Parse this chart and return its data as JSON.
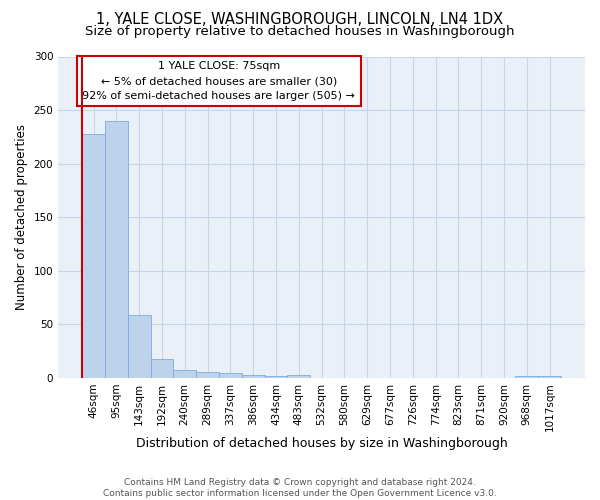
{
  "title1": "1, YALE CLOSE, WASHINGBOROUGH, LINCOLN, LN4 1DX",
  "title2": "Size of property relative to detached houses in Washingborough",
  "xlabel": "Distribution of detached houses by size in Washingborough",
  "ylabel": "Number of detached properties",
  "bar_labels": [
    "46sqm",
    "95sqm",
    "143sqm",
    "192sqm",
    "240sqm",
    "289sqm",
    "337sqm",
    "386sqm",
    "434sqm",
    "483sqm",
    "532sqm",
    "580sqm",
    "629sqm",
    "677sqm",
    "726sqm",
    "774sqm",
    "823sqm",
    "871sqm",
    "920sqm",
    "968sqm",
    "1017sqm"
  ],
  "bar_values": [
    228,
    240,
    59,
    18,
    7,
    6,
    5,
    3,
    2,
    3,
    0,
    0,
    0,
    0,
    0,
    0,
    0,
    0,
    0,
    2,
    2
  ],
  "bar_color": "#bdd3eb",
  "bar_edge_color": "#7aabe0",
  "annotation_box_text": "1 YALE CLOSE: 75sqm\n← 5% of detached houses are smaller (30)\n92% of semi-detached houses are larger (505) →",
  "red_line_color": "#cc0000",
  "box_edge_color": "#cc0000",
  "ylim": [
    0,
    300
  ],
  "yticks": [
    0,
    50,
    100,
    150,
    200,
    250,
    300
  ],
  "grid_color": "#c8d4e8",
  "bg_color": "#eaf0f8",
  "footnote": "Contains HM Land Registry data © Crown copyright and database right 2024.\nContains public sector information licensed under the Open Government Licence v3.0.",
  "title1_fontsize": 10.5,
  "title2_fontsize": 9.5,
  "annot_fontsize": 8,
  "xlabel_fontsize": 9,
  "ylabel_fontsize": 8.5,
  "tick_fontsize": 7.5,
  "footnote_fontsize": 6.5
}
